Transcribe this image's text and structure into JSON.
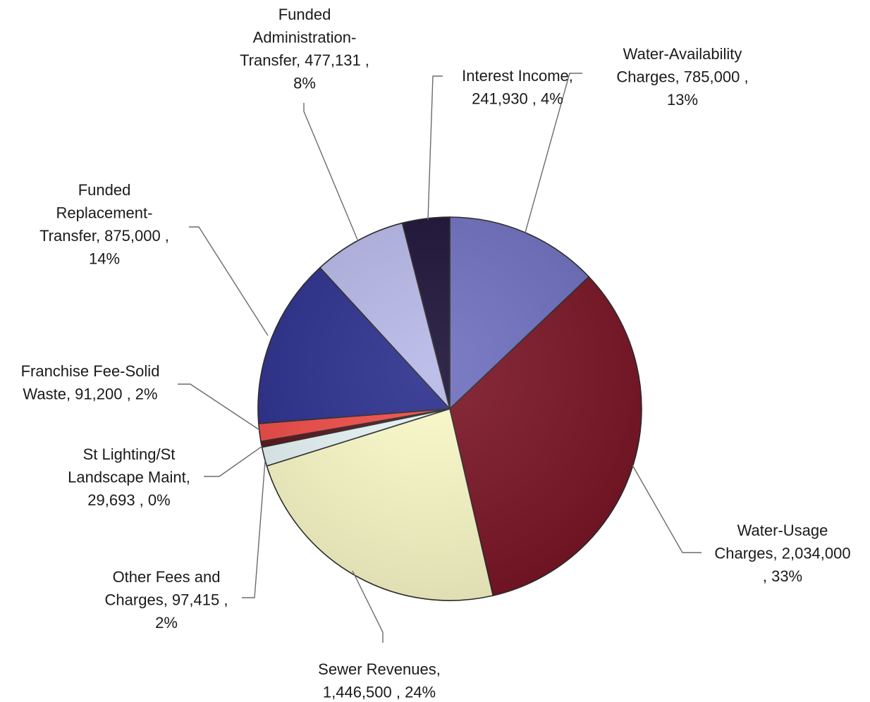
{
  "chart_data": {
    "type": "pie",
    "title": "",
    "slices": [
      {
        "label": "Water-Availability Charges",
        "value": 785000,
        "value_text": "785,000",
        "percent_text": "13%",
        "color": "#6f6fc0"
      },
      {
        "label": "Water-Usage Charges",
        "value": 2034000,
        "value_text": "2,034,000",
        "percent_text": "33%",
        "color": "#7a1424"
      },
      {
        "label": "Sewer Revenues",
        "value": 1446500,
        "value_text": "1,446,500",
        "percent_text": "24%",
        "color": "#fbfac8"
      },
      {
        "label": "Other Fees and Charges",
        "value": 97415,
        "value_text": "97,415",
        "percent_text": "2%",
        "color": "#e6f4f6"
      },
      {
        "label": "St Lighting/St Landscape Maint",
        "value": 29693,
        "value_text": "29,693",
        "percent_text": "0%",
        "color": "#5b1018"
      },
      {
        "label": "Franchise Fee-Solid Waste",
        "value": 91200,
        "value_text": "91,200",
        "percent_text": "2%",
        "color": "#f04a46"
      },
      {
        "label": "Funded Replacement-Transfer",
        "value": 875000,
        "value_text": "875,000",
        "percent_text": "14%",
        "color": "#2a2e8c"
      },
      {
        "label": "Funded Administration-Transfer",
        "value": 477131,
        "value_text": "477,131",
        "percent_text": "8%",
        "color": "#b6b8e8"
      },
      {
        "label": "Interest Income",
        "value": 241930,
        "value_text": "241,930",
        "percent_text": "4%",
        "color": "#1a1036"
      }
    ],
    "data_labels": [
      [
        "Water-Availability",
        "Charges, 785,000 ,",
        "13%"
      ],
      [
        "Water-Usage",
        "Charges, 2,034,000",
        ", 33%"
      ],
      [
        "Sewer Revenues,",
        "1,446,500 , 24%"
      ],
      [
        "Other Fees and",
        "Charges, 97,415 ,",
        "2%"
      ],
      [
        "St Lighting/St",
        "Landscape Maint,",
        "29,693 , 0%"
      ],
      [
        "Franchise Fee-Solid",
        "Waste, 91,200 , 2%"
      ],
      [
        "Funded",
        "Replacement-",
        "Transfer, 875,000 ,",
        "14%"
      ],
      [
        "Funded",
        "Administration-",
        "Transfer, 477,131 ,",
        "8%"
      ],
      [
        "Interest Income,",
        "241,930 , 4%"
      ]
    ],
    "legend": "none"
  }
}
